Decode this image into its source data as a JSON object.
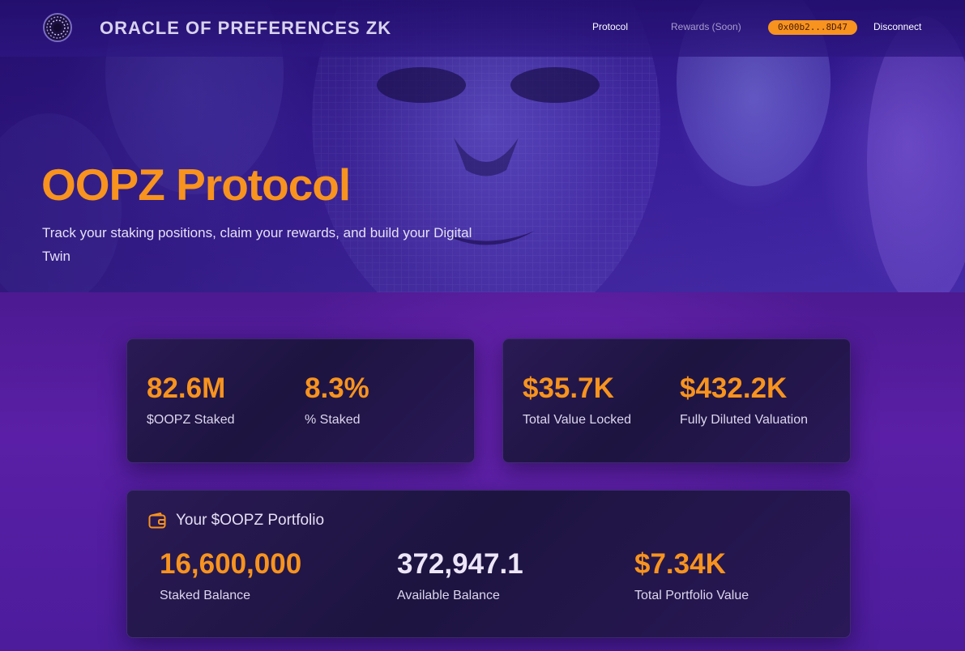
{
  "nav": {
    "brand": "ORACLE OF PREFERENCES ZK",
    "links": {
      "protocol": "Protocol",
      "rewards": "Rewards (Soon)",
      "wallet": "0x00b2...8D47",
      "disconnect": "Disconnect"
    }
  },
  "hero": {
    "title": "OOPZ Protocol",
    "subtitle": "Track your staking positions, claim your rewards, and build your Digital Twin"
  },
  "stats": {
    "staked": {
      "value": "82.6M",
      "label": "$OOPZ Staked"
    },
    "percent": {
      "value": "8.3%",
      "label": "% Staked"
    },
    "tvl": {
      "value": "$35.7K",
      "label": "Total Value Locked"
    },
    "fdv": {
      "value": "$432.2K",
      "label": "Fully Diluted Valuation"
    }
  },
  "portfolio": {
    "title": "Your $OOPZ Portfolio",
    "staked": {
      "value": "16,600,000",
      "label": "Staked Balance"
    },
    "available": {
      "value": "372,947.1",
      "label": "Available Balance"
    },
    "total": {
      "value": "$7.34K",
      "label": "Total Portfolio Value"
    }
  },
  "icons": {
    "logo": "spiral-logo-icon",
    "wallet": "wallet-icon"
  },
  "colors": {
    "accent": "#f7931e",
    "background": "#4d1a92",
    "card": "#1d1440"
  }
}
